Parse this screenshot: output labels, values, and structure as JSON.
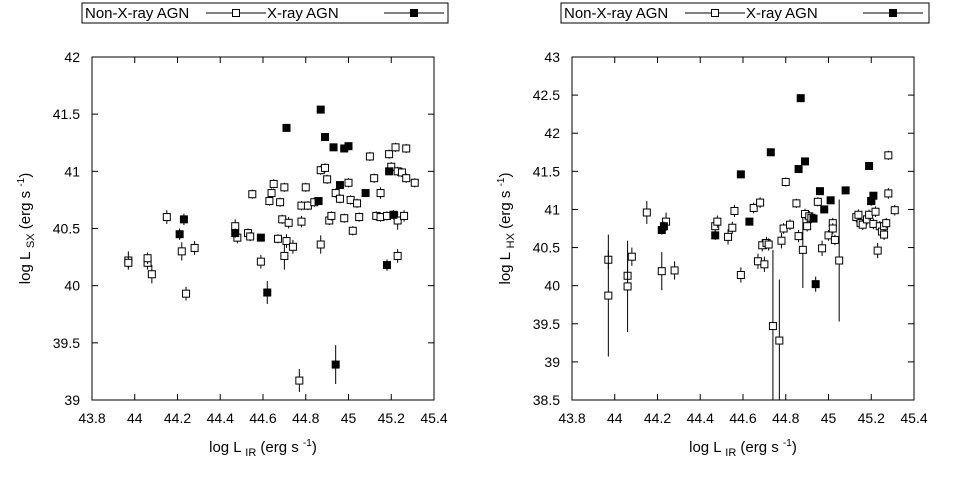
{
  "chart_data": [
    {
      "type": "scatter",
      "panel": "left",
      "xlabel": "log L",
      "xlabel_sub": "IR",
      "xlabel_units": "(erg s",
      "xlabel_sup": "-1",
      "xlabel_close": ")",
      "ylabel": "log L",
      "ylabel_sub": "SX",
      "ylabel_units": "(erg s",
      "ylabel_sup": "-1",
      "ylabel_close": ")",
      "xlim": [
        43.8,
        45.4
      ],
      "ylim": [
        39.0,
        42.0
      ],
      "xticks": [
        43.8,
        44.0,
        44.2,
        44.4,
        44.6,
        44.8,
        45.0,
        45.2,
        45.4
      ],
      "xtick_labels": [
        "43.8",
        "44",
        "44.2",
        "44.4",
        "44.6",
        "44.8",
        "45",
        "45.2",
        "45.4"
      ],
      "yticks": [
        39.0,
        39.5,
        40.0,
        40.5,
        41.0,
        41.5,
        42.0
      ],
      "ytick_labels": [
        "39",
        "39.5",
        "40",
        "40.5",
        "41",
        "41.5",
        "42"
      ],
      "legend": {
        "position": "top",
        "entries": [
          "Non-X-ray AGN",
          "X-ray AGN"
        ]
      },
      "series": [
        {
          "name": "Non-X-ray AGN",
          "marker": "open-square",
          "points": [
            {
              "x": 43.97,
              "y": 40.22,
              "err": 0.08
            },
            {
              "x": 43.97,
              "y": 40.2,
              "err": 0.05
            },
            {
              "x": 44.06,
              "y": 40.2,
              "err": 0.06
            },
            {
              "x": 44.06,
              "y": 40.24,
              "err": 0.05
            },
            {
              "x": 44.08,
              "y": 40.1,
              "err": 0.08
            },
            {
              "x": 44.15,
              "y": 40.6,
              "err": 0.06
            },
            {
              "x": 44.22,
              "y": 40.3,
              "err": 0.08
            },
            {
              "x": 44.24,
              "y": 39.93,
              "err": 0.06
            },
            {
              "x": 44.28,
              "y": 40.33,
              "err": 0.06
            },
            {
              "x": 44.47,
              "y": 40.52,
              "err": 0.06
            },
            {
              "x": 44.48,
              "y": 40.42,
              "err": 0.05
            },
            {
              "x": 44.53,
              "y": 40.46,
              "err": 0.04
            },
            {
              "x": 44.54,
              "y": 40.43,
              "err": 0.04
            },
            {
              "x": 44.55,
              "y": 40.8,
              "err": 0.04
            },
            {
              "x": 44.59,
              "y": 40.21,
              "err": 0.06
            },
            {
              "x": 44.63,
              "y": 40.74,
              "err": 0.04
            },
            {
              "x": 44.64,
              "y": 40.81,
              "err": 0.04
            },
            {
              "x": 44.65,
              "y": 40.89,
              "err": 0.04
            },
            {
              "x": 44.67,
              "y": 40.41,
              "err": 0.04
            },
            {
              "x": 44.68,
              "y": 40.73,
              "err": 0.04
            },
            {
              "x": 44.69,
              "y": 40.58,
              "err": 0.04
            },
            {
              "x": 44.7,
              "y": 40.86,
              "err": 0.04
            },
            {
              "x": 44.7,
              "y": 40.26,
              "err": 0.12
            },
            {
              "x": 44.71,
              "y": 40.39,
              "err": 0.06
            },
            {
              "x": 44.72,
              "y": 40.55,
              "err": 0.05
            },
            {
              "x": 44.74,
              "y": 40.34,
              "err": 0.06
            },
            {
              "x": 44.77,
              "y": 39.17,
              "err": 0.1
            },
            {
              "x": 44.78,
              "y": 40.7,
              "err": 0.04
            },
            {
              "x": 44.78,
              "y": 40.56,
              "err": 0.05
            },
            {
              "x": 44.8,
              "y": 40.86,
              "err": 0.04
            },
            {
              "x": 44.81,
              "y": 40.7,
              "err": 0.04
            },
            {
              "x": 44.84,
              "y": 40.73,
              "err": 0.04
            },
            {
              "x": 44.87,
              "y": 40.36,
              "err": 0.08
            },
            {
              "x": 44.87,
              "y": 41.01,
              "err": 0.04
            },
            {
              "x": 44.89,
              "y": 41.03,
              "err": 0.04
            },
            {
              "x": 44.9,
              "y": 40.93,
              "err": 0.04
            },
            {
              "x": 44.91,
              "y": 40.57,
              "err": 0.04
            },
            {
              "x": 44.92,
              "y": 40.61,
              "err": 0.04
            },
            {
              "x": 44.94,
              "y": 40.81,
              "err": 0.04
            },
            {
              "x": 44.96,
              "y": 40.76,
              "err": 0.04
            },
            {
              "x": 44.98,
              "y": 40.59,
              "err": 0.04
            },
            {
              "x": 45.0,
              "y": 40.9,
              "err": 0.04
            },
            {
              "x": 45.01,
              "y": 40.75,
              "err": 0.04
            },
            {
              "x": 45.02,
              "y": 40.48,
              "err": 0.04
            },
            {
              "x": 45.04,
              "y": 40.72,
              "err": 0.04
            },
            {
              "x": 45.05,
              "y": 40.6,
              "err": 0.04
            },
            {
              "x": 45.1,
              "y": 41.13,
              "err": 0.04
            },
            {
              "x": 45.12,
              "y": 40.94,
              "err": 0.04
            },
            {
              "x": 45.13,
              "y": 40.61,
              "err": 0.04
            },
            {
              "x": 45.15,
              "y": 40.81,
              "err": 0.05
            },
            {
              "x": 45.15,
              "y": 40.6,
              "err": 0.04
            },
            {
              "x": 45.18,
              "y": 40.61,
              "err": 0.04
            },
            {
              "x": 45.19,
              "y": 41.15,
              "err": 0.04
            },
            {
              "x": 45.2,
              "y": 41.04,
              "err": 0.04
            },
            {
              "x": 45.22,
              "y": 41.21,
              "err": 0.04
            },
            {
              "x": 45.23,
              "y": 41.0,
              "err": 0.04
            },
            {
              "x": 45.23,
              "y": 40.57,
              "err": 0.08
            },
            {
              "x": 45.23,
              "y": 40.26,
              "err": 0.06
            },
            {
              "x": 45.25,
              "y": 40.99,
              "err": 0.04
            },
            {
              "x": 45.26,
              "y": 40.61,
              "err": 0.05
            },
            {
              "x": 45.27,
              "y": 40.94,
              "err": 0.04
            },
            {
              "x": 45.27,
              "y": 41.2,
              "err": 0.04
            },
            {
              "x": 45.31,
              "y": 40.9,
              "err": 0.04
            }
          ]
        },
        {
          "name": "X-ray AGN",
          "marker": "filled-square",
          "points": [
            {
              "x": 44.21,
              "y": 40.45,
              "err": 0.05
            },
            {
              "x": 44.23,
              "y": 40.58,
              "err": 0.05
            },
            {
              "x": 44.47,
              "y": 40.46,
              "err": 0.04
            },
            {
              "x": 44.59,
              "y": 40.42,
              "err": 0.03
            },
            {
              "x": 44.62,
              "y": 39.94,
              "err": 0.1
            },
            {
              "x": 44.71,
              "y": 41.38,
              "err": 0.02
            },
            {
              "x": 44.86,
              "y": 40.74,
              "err": 0.03
            },
            {
              "x": 44.87,
              "y": 41.54,
              "err": 0.02
            },
            {
              "x": 44.89,
              "y": 41.3,
              "err": 0.02
            },
            {
              "x": 44.93,
              "y": 41.21,
              "err": 0.02
            },
            {
              "x": 44.94,
              "y": 39.31,
              "err": 0.17
            },
            {
              "x": 44.96,
              "y": 40.88,
              "err": 0.03
            },
            {
              "x": 44.98,
              "y": 41.2,
              "err": 0.02
            },
            {
              "x": 45.0,
              "y": 41.22,
              "err": 0.02
            },
            {
              "x": 45.08,
              "y": 40.81,
              "err": 0.03
            },
            {
              "x": 45.18,
              "y": 40.18,
              "err": 0.05
            },
            {
              "x": 45.19,
              "y": 41.0,
              "err": 0.03
            },
            {
              "x": 45.21,
              "y": 40.62,
              "err": 0.04
            }
          ]
        }
      ]
    },
    {
      "type": "scatter",
      "panel": "right",
      "xlabel": "log L",
      "xlabel_sub": "IR",
      "xlabel_units": "(erg s",
      "xlabel_sup": "-1",
      "xlabel_close": ")",
      "ylabel": "log L",
      "ylabel_sub": "HX",
      "ylabel_units": "(erg s",
      "ylabel_sup": "-1",
      "ylabel_close": ")",
      "xlim": [
        43.8,
        45.4
      ],
      "ylim": [
        38.5,
        43.0
      ],
      "xticks": [
        43.8,
        44.0,
        44.2,
        44.4,
        44.6,
        44.8,
        45.0,
        45.2,
        45.4
      ],
      "xtick_labels": [
        "43.8",
        "44",
        "44.2",
        "44.4",
        "44.6",
        "44.8",
        "45",
        "45.2",
        "45.4"
      ],
      "yticks": [
        38.5,
        39.0,
        39.5,
        40.0,
        40.5,
        41.0,
        41.5,
        42.0,
        42.5,
        43.0
      ],
      "ytick_labels": [
        "38.5",
        "39",
        "39.5",
        "40",
        "40.5",
        "41",
        "41.5",
        "42",
        "42.5",
        "43"
      ],
      "legend": {
        "position": "top",
        "entries": [
          "Non-X-ray AGN",
          "X-ray AGN"
        ]
      },
      "series": [
        {
          "name": "Non-X-ray AGN",
          "marker": "open-square",
          "points": [
            {
              "x": 43.97,
              "y": 40.34,
              "err": 0.12
            },
            {
              "x": 43.97,
              "y": 39.87,
              "err": 0.8
            },
            {
              "x": 44.06,
              "y": 40.13,
              "err": 0.2
            },
            {
              "x": 44.06,
              "y": 39.99,
              "err": 0.6
            },
            {
              "x": 44.08,
              "y": 40.38,
              "err": 0.12
            },
            {
              "x": 44.15,
              "y": 40.96,
              "err": 0.15
            },
            {
              "x": 44.22,
              "y": 40.19,
              "err": 0.25
            },
            {
              "x": 44.24,
              "y": 40.84,
              "err": 0.12
            },
            {
              "x": 44.28,
              "y": 40.2,
              "err": 0.12
            },
            {
              "x": 44.47,
              "y": 40.78,
              "err": 0.08
            },
            {
              "x": 44.48,
              "y": 40.84,
              "err": 0.08
            },
            {
              "x": 44.53,
              "y": 40.64,
              "err": 0.1
            },
            {
              "x": 44.55,
              "y": 40.76,
              "err": 0.08
            },
            {
              "x": 44.56,
              "y": 40.98,
              "err": 0.08
            },
            {
              "x": 44.59,
              "y": 40.14,
              "err": 0.1
            },
            {
              "x": 44.65,
              "y": 41.02,
              "err": 0.07
            },
            {
              "x": 44.67,
              "y": 40.32,
              "err": 0.1
            },
            {
              "x": 44.68,
              "y": 41.09,
              "err": 0.07
            },
            {
              "x": 44.69,
              "y": 40.53,
              "err": 0.08
            },
            {
              "x": 44.7,
              "y": 40.28,
              "err": 0.1
            },
            {
              "x": 44.71,
              "y": 40.56,
              "err": 0.08
            },
            {
              "x": 44.72,
              "y": 40.54,
              "err": 0.08
            },
            {
              "x": 44.74,
              "y": 39.47,
              "err": 1.0
            },
            {
              "x": 44.77,
              "y": 39.28,
              "err": 0.8
            },
            {
              "x": 44.78,
              "y": 40.59,
              "err": 0.1
            },
            {
              "x": 44.79,
              "y": 40.75,
              "err": 0.07
            },
            {
              "x": 44.8,
              "y": 41.36,
              "err": 0.06
            },
            {
              "x": 44.82,
              "y": 40.8,
              "err": 0.07
            },
            {
              "x": 44.85,
              "y": 41.08,
              "err": 0.06
            },
            {
              "x": 44.86,
              "y": 40.65,
              "err": 0.08
            },
            {
              "x": 44.88,
              "y": 40.47,
              "err": 0.5
            },
            {
              "x": 44.89,
              "y": 40.94,
              "err": 0.07
            },
            {
              "x": 44.9,
              "y": 40.78,
              "err": 0.07
            },
            {
              "x": 44.91,
              "y": 40.91,
              "err": 0.07
            },
            {
              "x": 44.92,
              "y": 40.89,
              "err": 0.07
            },
            {
              "x": 44.95,
              "y": 41.1,
              "err": 0.06
            },
            {
              "x": 44.97,
              "y": 40.49,
              "err": 0.1
            },
            {
              "x": 45.0,
              "y": 40.66,
              "err": 0.07
            },
            {
              "x": 45.02,
              "y": 40.82,
              "err": 0.07
            },
            {
              "x": 45.02,
              "y": 40.75,
              "err": 0.07
            },
            {
              "x": 45.03,
              "y": 40.6,
              "err": 0.07
            },
            {
              "x": 45.05,
              "y": 40.33,
              "err": 0.8
            },
            {
              "x": 45.13,
              "y": 40.9,
              "err": 0.07
            },
            {
              "x": 45.14,
              "y": 40.93,
              "err": 0.07
            },
            {
              "x": 45.15,
              "y": 40.82,
              "err": 0.07
            },
            {
              "x": 45.16,
              "y": 40.8,
              "err": 0.07
            },
            {
              "x": 45.18,
              "y": 40.87,
              "err": 0.07
            },
            {
              "x": 45.19,
              "y": 40.93,
              "err": 0.07
            },
            {
              "x": 45.2,
              "y": 41.11,
              "err": 0.06
            },
            {
              "x": 45.21,
              "y": 40.81,
              "err": 0.07
            },
            {
              "x": 45.22,
              "y": 40.97,
              "err": 0.07
            },
            {
              "x": 45.23,
              "y": 40.46,
              "err": 0.1
            },
            {
              "x": 45.24,
              "y": 40.78,
              "err": 0.07
            },
            {
              "x": 45.25,
              "y": 40.71,
              "err": 0.07
            },
            {
              "x": 45.26,
              "y": 40.78,
              "err": 0.07
            },
            {
              "x": 45.26,
              "y": 40.67,
              "err": 0.07
            },
            {
              "x": 45.27,
              "y": 40.82,
              "err": 0.07
            },
            {
              "x": 45.28,
              "y": 41.21,
              "err": 0.07
            },
            {
              "x": 45.28,
              "y": 41.71,
              "err": 0.06
            },
            {
              "x": 45.31,
              "y": 40.99,
              "err": 0.07
            }
          ]
        },
        {
          "name": "X-ray AGN",
          "marker": "filled-square",
          "points": [
            {
              "x": 44.22,
              "y": 40.73,
              "err": 0.06
            },
            {
              "x": 44.23,
              "y": 40.78,
              "err": 0.06
            },
            {
              "x": 44.47,
              "y": 40.66,
              "err": 0.06
            },
            {
              "x": 44.59,
              "y": 41.46,
              "err": 0.03
            },
            {
              "x": 44.63,
              "y": 40.84,
              "err": 0.05
            },
            {
              "x": 44.73,
              "y": 41.75,
              "err": 0.03
            },
            {
              "x": 44.86,
              "y": 41.53,
              "err": 0.03
            },
            {
              "x": 44.87,
              "y": 42.46,
              "err": 0.02
            },
            {
              "x": 44.89,
              "y": 41.63,
              "err": 0.03
            },
            {
              "x": 44.93,
              "y": 40.88,
              "err": 0.04
            },
            {
              "x": 44.94,
              "y": 40.02,
              "err": 0.1
            },
            {
              "x": 44.96,
              "y": 41.24,
              "err": 0.04
            },
            {
              "x": 44.98,
              "y": 41.0,
              "err": 0.04
            },
            {
              "x": 45.01,
              "y": 41.12,
              "err": 0.04
            },
            {
              "x": 45.08,
              "y": 41.25,
              "err": 0.04
            },
            {
              "x": 45.19,
              "y": 41.57,
              "err": 0.04
            },
            {
              "x": 45.2,
              "y": 41.11,
              "err": 0.04
            },
            {
              "x": 45.21,
              "y": 41.18,
              "err": 0.04
            }
          ]
        }
      ]
    }
  ]
}
